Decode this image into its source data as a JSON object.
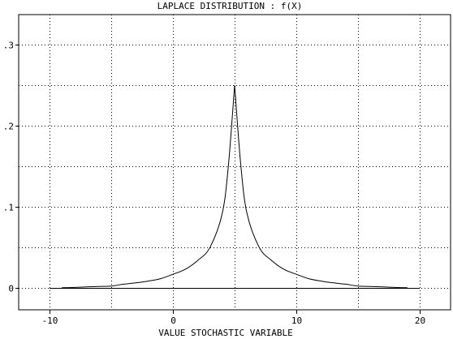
{
  "chart_data": {
    "type": "line",
    "title": "LAPLACE DISTRIBUTION : f(X)",
    "xlabel": "VALUE STOCHASTIC VARIABLE",
    "ylabel": "",
    "xlim": [
      -12.5,
      22.5
    ],
    "ylim": [
      -0.027,
      0.337
    ],
    "x_ticks": [
      -10,
      0,
      10,
      20
    ],
    "x_tick_labels": [
      "-10",
      "0",
      "10",
      "20"
    ],
    "y_ticks": [
      0,
      0.1,
      0.2,
      0.3
    ],
    "y_tick_labels": [
      "0",
      ".1",
      ".2",
      ".3"
    ],
    "grid": true,
    "x_grid_values": [
      -10,
      -5,
      0,
      5,
      10,
      15,
      20
    ],
    "y_grid_values": [
      0,
      0.05,
      0.1,
      0.15,
      0.2,
      0.25,
      0.3
    ],
    "baseline": {
      "y": 0,
      "x_start": -10,
      "x_end": 20
    },
    "series": [
      {
        "x": [
          -9,
          -8,
          -7,
          -6,
          -5,
          -4,
          -3,
          -2,
          -1,
          0,
          1,
          2,
          3,
          4,
          4.5,
          5,
          5.5,
          6,
          7,
          8,
          9,
          10,
          11,
          12,
          13,
          14,
          15,
          16,
          17,
          18,
          19
        ],
        "values": [
          0.0002,
          0.0006,
          0.0012,
          0.0017,
          0.0023,
          0.0046,
          0.0062,
          0.0084,
          0.0114,
          0.0168,
          0.0229,
          0.0338,
          0.0498,
          0.092,
          0.1516,
          0.25,
          0.1516,
          0.092,
          0.0498,
          0.0338,
          0.0229,
          0.0168,
          0.0114,
          0.0084,
          0.0062,
          0.0046,
          0.0023,
          0.0017,
          0.0012,
          0.0006,
          0.0002
        ],
        "color": "#000000"
      }
    ]
  }
}
